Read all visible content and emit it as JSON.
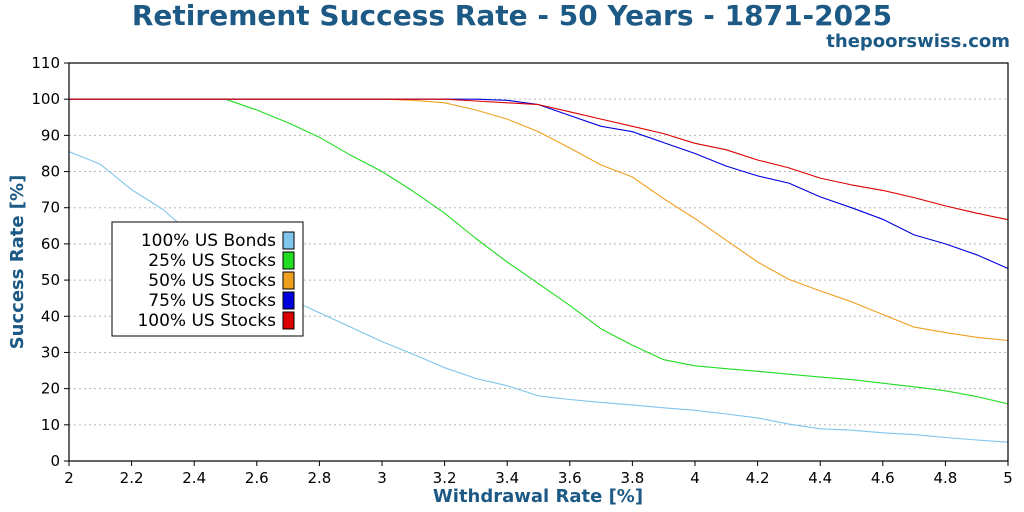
{
  "chart_data": {
    "type": "line",
    "title": "Retirement Success Rate - 50 Years - 1871-2025",
    "subtitle": "thepoorswiss.com",
    "xlabel": "Withdrawal Rate [%]",
    "ylabel": "Success Rate [%]",
    "xlim": [
      2,
      5
    ],
    "ylim": [
      0,
      110
    ],
    "xticks": [
      "2",
      "2.2",
      "2.4",
      "2.6",
      "2.8",
      "3",
      "3.2",
      "3.4",
      "3.6",
      "3.8",
      "4",
      "4.2",
      "4.4",
      "4.6",
      "4.8",
      "5"
    ],
    "yticks": [
      "0",
      "10",
      "20",
      "30",
      "40",
      "50",
      "60",
      "70",
      "80",
      "90",
      "100",
      "110"
    ],
    "grid": "horizontal-dotted",
    "legend_position": "left-middle",
    "x": [
      2.0,
      2.1,
      2.2,
      2.3,
      2.4,
      2.5,
      2.6,
      2.7,
      2.8,
      2.9,
      3.0,
      3.1,
      3.2,
      3.3,
      3.4,
      3.5,
      3.6,
      3.7,
      3.8,
      3.9,
      4.0,
      4.1,
      4.2,
      4.3,
      4.4,
      4.5,
      4.6,
      4.7,
      4.8,
      4.9,
      5.0
    ],
    "series": [
      {
        "name": "100% US Bonds",
        "color": "#7fc5ec",
        "values": [
          85.5,
          82,
          75,
          69.5,
          62,
          55,
          50,
          45,
          41,
          37,
          33,
          29.5,
          25.8,
          22.8,
          20.8,
          18,
          17,
          16.2,
          15.5,
          14.7,
          14,
          13,
          11.9,
          10.2,
          8.9,
          8.5,
          7.8,
          7.3,
          6.5,
          5.8,
          5.2
        ]
      },
      {
        "name": "25% US Stocks",
        "color": "#22dd22",
        "values": [
          100,
          100,
          100,
          100,
          100,
          100,
          97,
          93.5,
          89.5,
          84.5,
          80,
          74.5,
          68.5,
          61.5,
          55,
          49,
          43,
          36.5,
          32,
          28,
          26.3,
          25.5,
          24.8,
          24,
          23.2,
          22.5,
          21.5,
          20.5,
          19.4,
          17.8,
          15.8
        ]
      },
      {
        "name": "50% US Stocks",
        "color": "#f0a020",
        "values": [
          100,
          100,
          100,
          100,
          100,
          100,
          100,
          100,
          100,
          100,
          100,
          99.7,
          99,
          97,
          94.5,
          91,
          86.5,
          81.8,
          78.5,
          72.5,
          67,
          61,
          55,
          50.2,
          47,
          44,
          40.5,
          37,
          35.5,
          34.2,
          33.3
        ]
      },
      {
        "name": "75% US Stocks",
        "color": "#0000dd",
        "values": [
          100,
          100,
          100,
          100,
          100,
          100,
          100,
          100,
          100,
          100,
          100,
          100,
          100,
          100,
          99.7,
          98.5,
          95.5,
          92.5,
          91,
          88,
          85,
          81.5,
          78.8,
          76.8,
          73,
          70,
          66.8,
          62.5,
          60,
          57,
          53.2
        ]
      },
      {
        "name": "100% US Stocks",
        "color": "#dd0000",
        "values": [
          100,
          100,
          100,
          100,
          100,
          100,
          100,
          100,
          100,
          100,
          100,
          100,
          100,
          99.5,
          99,
          98.5,
          96.5,
          94.5,
          92.5,
          90.5,
          87.8,
          86,
          83.2,
          81,
          78.2,
          76.3,
          74.8,
          72.8,
          70.5,
          68.5,
          66.7
        ]
      }
    ]
  }
}
